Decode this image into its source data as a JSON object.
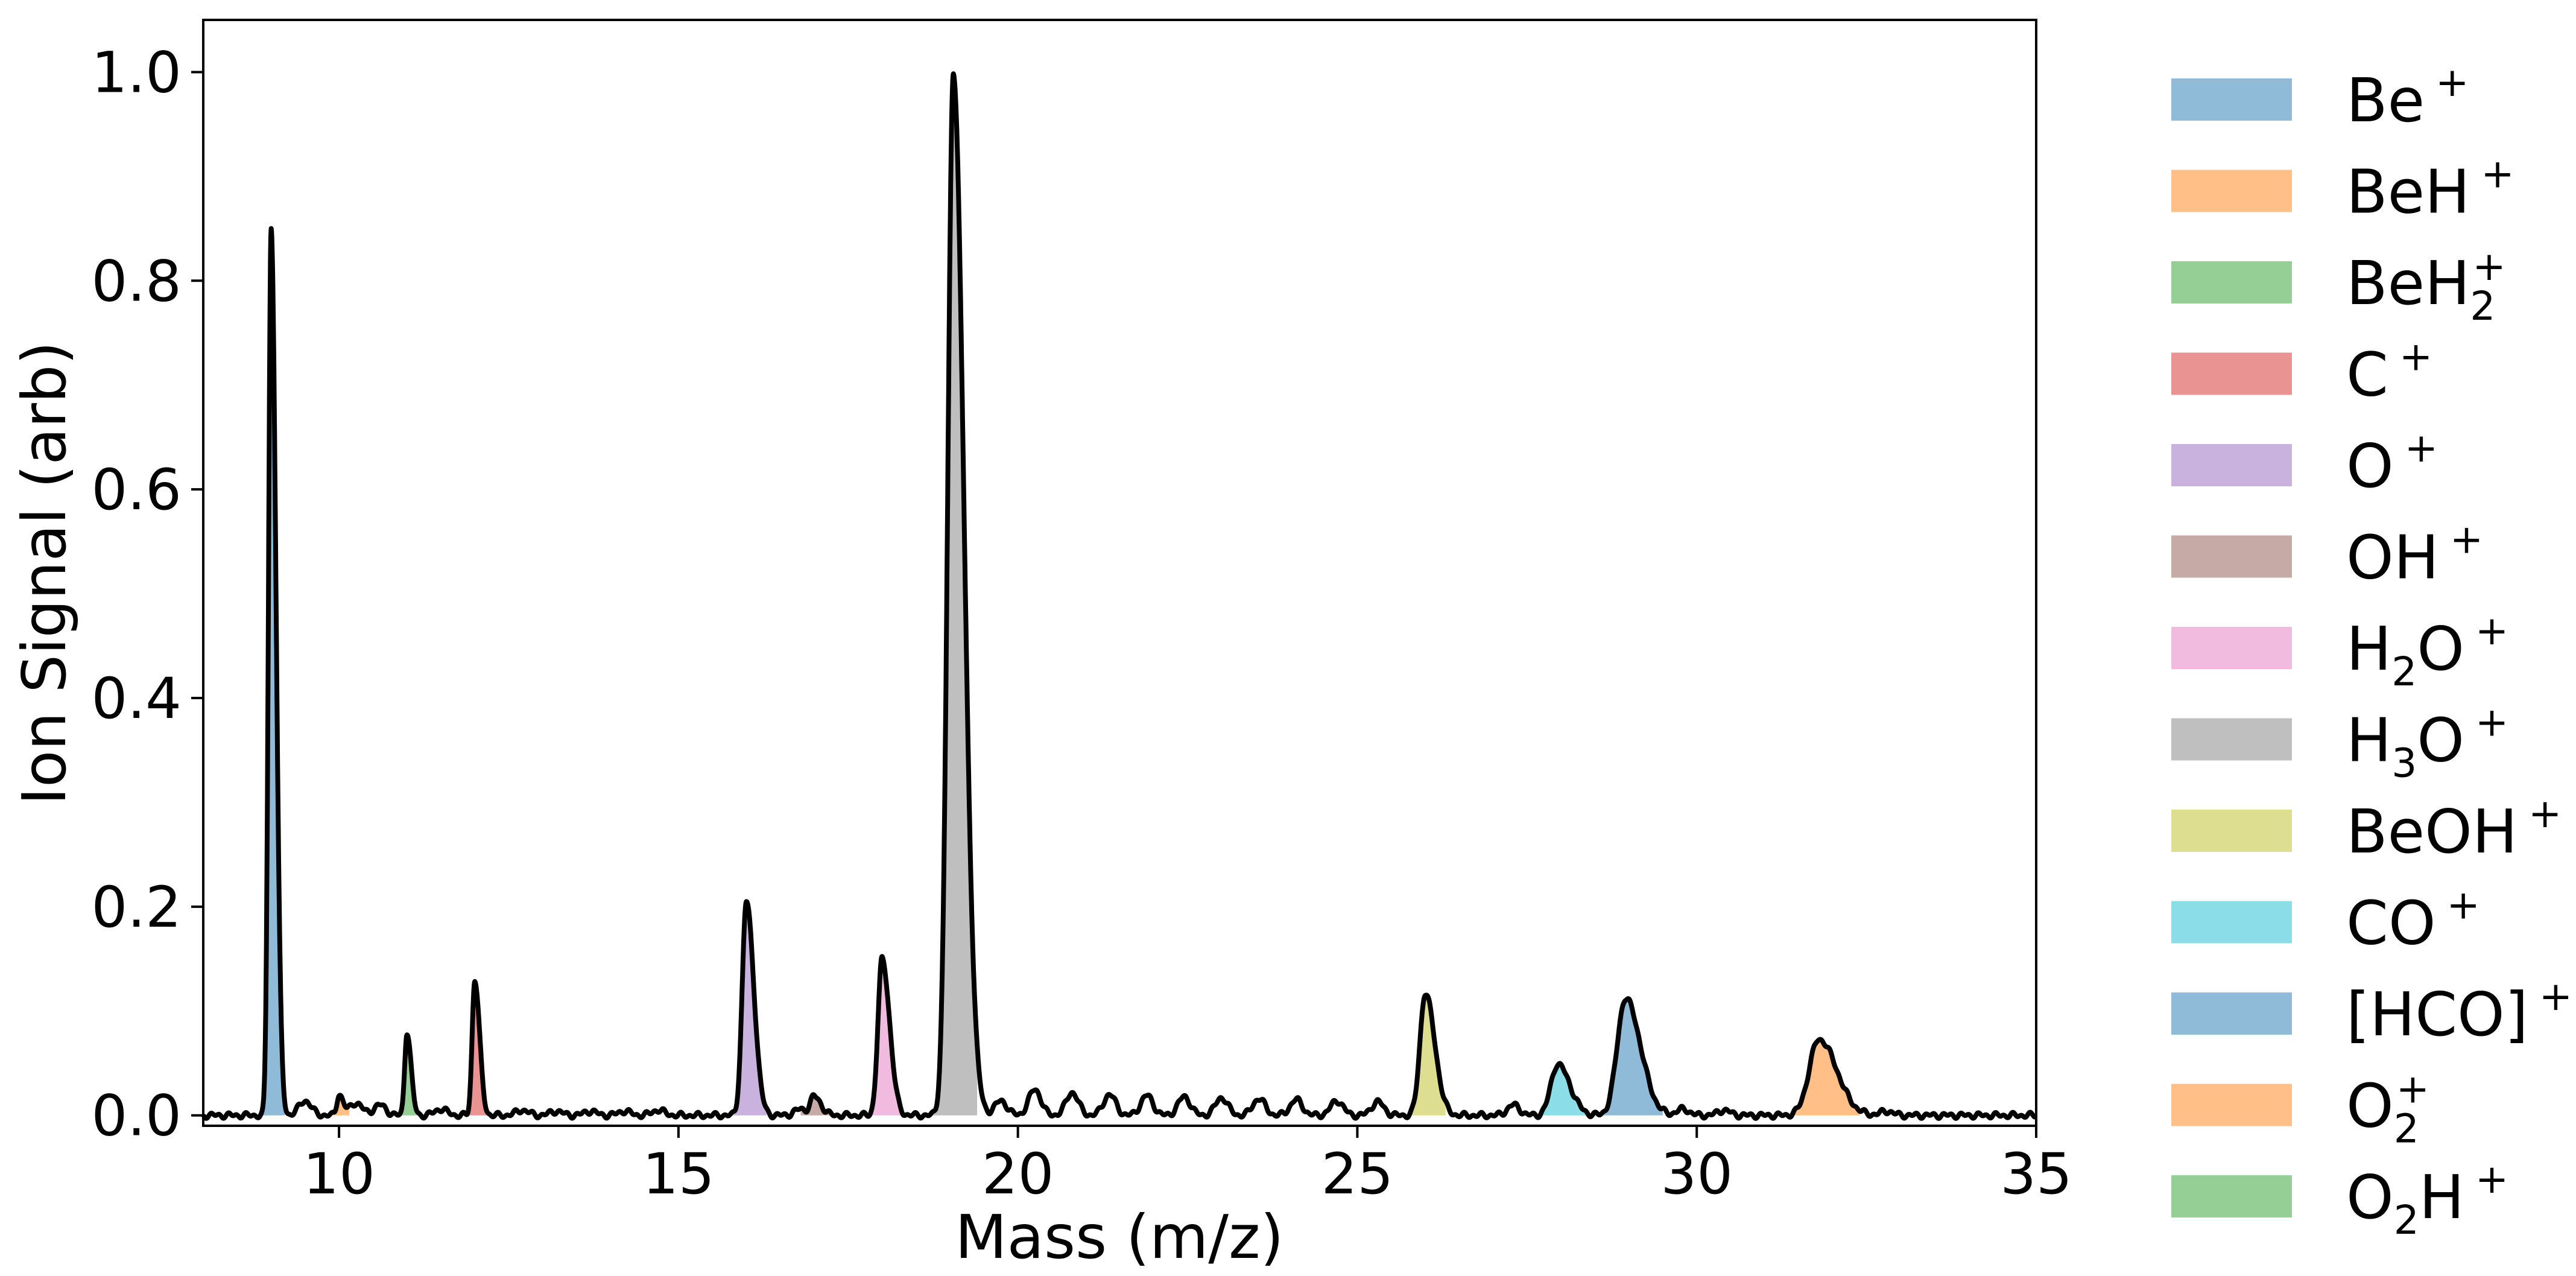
{
  "chart_data": {
    "type": "area",
    "title": "",
    "xlabel": "Mass (m/z)",
    "ylabel": "Ion Signal (arb)",
    "xlim": [
      8,
      35
    ],
    "ylim": [
      -0.01,
      1.05
    ],
    "x_ticks": [
      10,
      15,
      20,
      25,
      30,
      35
    ],
    "x_tick_labels": [
      "10",
      "15",
      "20",
      "25",
      "30",
      "35"
    ],
    "y_ticks": [
      0.0,
      0.2,
      0.4,
      0.6,
      0.8,
      1.0
    ],
    "y_tick_labels": [
      "0.0",
      "0.2",
      "0.4",
      "0.6",
      "0.8",
      "1.0"
    ],
    "grid": false,
    "legend_position": "right",
    "trace_color": "#000000",
    "baseline_noise": 0.003,
    "ringing": [
      {
        "x": 9.5,
        "amp": 0.014
      },
      {
        "x": 10.25,
        "amp": 0.012
      },
      {
        "x": 10.6,
        "amp": 0.01
      },
      {
        "x": 11.5,
        "amp": 0.006
      },
      {
        "x": 12.7,
        "amp": 0.005
      },
      {
        "x": 13.2,
        "amp": 0.004
      },
      {
        "x": 13.7,
        "amp": 0.004
      },
      {
        "x": 14.2,
        "amp": 0.004
      },
      {
        "x": 14.7,
        "amp": 0.005
      },
      {
        "x": 16.8,
        "amp": 0.006
      },
      {
        "x": 19.75,
        "amp": 0.014
      },
      {
        "x": 20.25,
        "amp": 0.025
      },
      {
        "x": 20.8,
        "amp": 0.022
      },
      {
        "x": 21.35,
        "amp": 0.02
      },
      {
        "x": 21.9,
        "amp": 0.019
      },
      {
        "x": 22.45,
        "amp": 0.018
      },
      {
        "x": 23.0,
        "amp": 0.017
      },
      {
        "x": 23.55,
        "amp": 0.016
      },
      {
        "x": 24.1,
        "amp": 0.015
      },
      {
        "x": 24.7,
        "amp": 0.014
      },
      {
        "x": 25.3,
        "amp": 0.013
      },
      {
        "x": 27.3,
        "amp": 0.01
      },
      {
        "x": 29.8,
        "amp": 0.006
      },
      {
        "x": 30.4,
        "amp": 0.005
      },
      {
        "x": 32.8,
        "amp": 0.004
      }
    ],
    "series": [
      {
        "name": "Be$^+$",
        "label_parts": [
          [
            "Be",
            ""
          ],
          [
            "+",
            "sup"
          ]
        ],
        "color": "#1f77b4",
        "peak_x": 9.0,
        "peak_y": 0.85,
        "width": 0.07,
        "range": [
          8.8,
          9.2
        ]
      },
      {
        "name": "BeH$^+$",
        "label_parts": [
          [
            "BeH",
            ""
          ],
          [
            "+",
            "sup"
          ]
        ],
        "color": "#ff7f0e",
        "peak_x": 10.0,
        "peak_y": 0.02,
        "width": 0.06,
        "range": [
          9.85,
          10.15
        ]
      },
      {
        "name": "BeH$_2^+$",
        "label_parts": [
          [
            "BeH",
            ""
          ],
          [
            "2",
            "sub"
          ],
          [
            "+",
            "supstack"
          ]
        ],
        "color": "#2ca02c",
        "peak_x": 11.0,
        "peak_y": 0.08,
        "width": 0.06,
        "range": [
          10.85,
          11.15
        ]
      },
      {
        "name": "C$^+$",
        "label_parts": [
          [
            "C",
            ""
          ],
          [
            "+",
            "sup"
          ]
        ],
        "color": "#d62728",
        "peak_x": 12.0,
        "peak_y": 0.13,
        "width": 0.07,
        "range": [
          11.8,
          12.2
        ]
      },
      {
        "name": "O$^+$",
        "label_parts": [
          [
            "O",
            ""
          ],
          [
            "+",
            "sup"
          ]
        ],
        "color": "#9467bd",
        "peak_x": 16.0,
        "peak_y": 0.205,
        "width": 0.11,
        "range": [
          15.7,
          16.3
        ]
      },
      {
        "name": "OH$^+$",
        "label_parts": [
          [
            "OH",
            ""
          ],
          [
            "+",
            "sup"
          ]
        ],
        "color": "#8c564b",
        "peak_x": 17.0,
        "peak_y": 0.018,
        "width": 0.1,
        "range": [
          16.8,
          17.25
        ]
      },
      {
        "name": "H$_2$O$^+$",
        "label_parts": [
          [
            "H",
            ""
          ],
          [
            "2",
            "sub"
          ],
          [
            "O",
            ""
          ],
          [
            "+",
            "sup"
          ]
        ],
        "color": "#e377c2",
        "peak_x": 18.0,
        "peak_y": 0.15,
        "width": 0.11,
        "range": [
          17.7,
          18.3
        ]
      },
      {
        "name": "H$_3$O$^+$",
        "label_parts": [
          [
            "H",
            ""
          ],
          [
            "3",
            "sub"
          ],
          [
            "O",
            ""
          ],
          [
            "+",
            "sup"
          ]
        ],
        "color": "#7f7f7f",
        "peak_x": 19.05,
        "peak_y": 1.0,
        "width": 0.15,
        "range": [
          18.7,
          19.4
        ]
      },
      {
        "name": "BeOH$^+$",
        "label_parts": [
          [
            "BeOH",
            ""
          ],
          [
            "+",
            "sup"
          ]
        ],
        "color": "#bcbd22",
        "peak_x": 26.0,
        "peak_y": 0.117,
        "width": 0.14,
        "range": [
          25.6,
          26.3
        ]
      },
      {
        "name": "CO$^+$",
        "label_parts": [
          [
            "CO",
            ""
          ],
          [
            "+",
            "sup"
          ]
        ],
        "color": "#17becf",
        "peak_x": 27.95,
        "peak_y": 0.049,
        "width": 0.18,
        "range": [
          27.5,
          28.4
        ]
      },
      {
        "name": "[HCO]$^+$",
        "label_parts": [
          [
            "[HCO]",
            ""
          ],
          [
            "+",
            "sup"
          ]
        ],
        "color": "#1f77b4",
        "peak_x": 28.95,
        "peak_y": 0.112,
        "width": 0.22,
        "range": [
          28.4,
          29.5
        ]
      },
      {
        "name": "O$_2^+$",
        "label_parts": [
          [
            "O",
            ""
          ],
          [
            "2",
            "sub"
          ],
          [
            "+",
            "supstack"
          ]
        ],
        "color": "#ff7f0e",
        "peak_x": 31.8,
        "peak_y": 0.073,
        "width": 0.26,
        "range": [
          31.3,
          32.4
        ]
      },
      {
        "name": "O$_2$H$^+$",
        "label_parts": [
          [
            "O",
            ""
          ],
          [
            "2",
            "sub"
          ],
          [
            "H",
            ""
          ],
          [
            "+",
            "sup"
          ]
        ],
        "color": "#2ca02c",
        "peak_x": 33.0,
        "peak_y": 0.0,
        "width": 0.2,
        "range": [
          32.9,
          33.1
        ]
      }
    ]
  }
}
